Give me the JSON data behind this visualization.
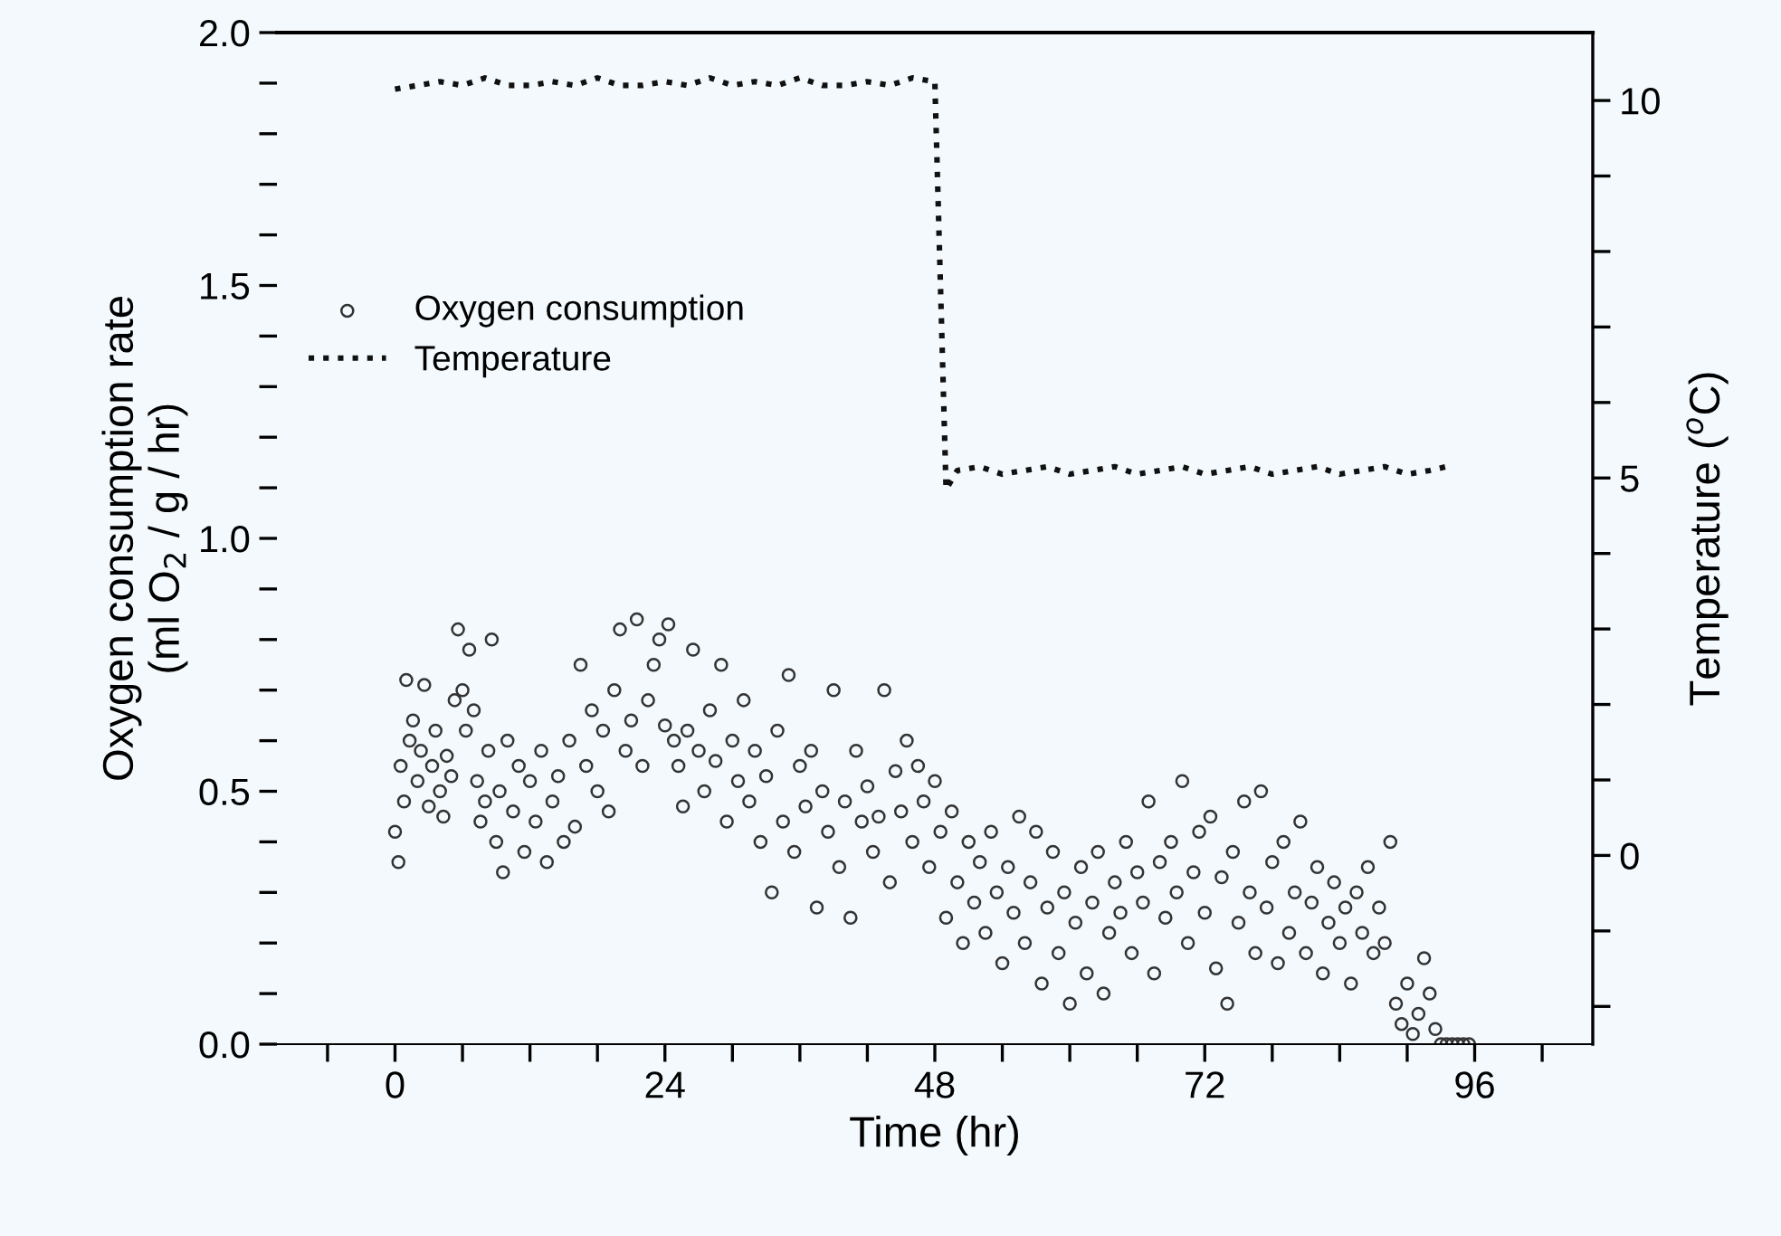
{
  "chart_data": {
    "type": "scatter",
    "xlabel": "Time (hr)",
    "ylabel": "Oxygen consumption rate\n(ml O$_{2}$ / g / hr)",
    "y2label": "Temperature ($^{o}$C)",
    "xlim": [
      -10.5,
      106.5
    ],
    "xticks": [
      {
        "value": -6,
        "label": null
      },
      0,
      {
        "value": 6,
        "label": null
      },
      {
        "value": 12,
        "label": null
      },
      {
        "value": 18,
        "label": null
      },
      24,
      {
        "value": 30,
        "label": null
      },
      {
        "value": 36,
        "label": null
      },
      {
        "value": 42,
        "label": null
      },
      48,
      {
        "value": 54,
        "label": null
      },
      {
        "value": 60,
        "label": null
      },
      {
        "value": 66,
        "label": null
      },
      72,
      {
        "value": 78,
        "label": null
      },
      {
        "value": 84,
        "label": null
      },
      {
        "value": 90,
        "label": null
      },
      96,
      {
        "value": 102,
        "label": null
      }
    ],
    "ylim": [
      0,
      2.0
    ],
    "yticks": [
      {
        "value": 0,
        "label": "0.0"
      },
      {
        "value": 0.1,
        "label": null
      },
      {
        "value": 0.2,
        "label": null
      },
      {
        "value": 0.3,
        "label": null
      },
      {
        "value": 0.4,
        "label": null
      },
      0.5,
      {
        "value": 0.6,
        "label": null
      },
      {
        "value": 0.7,
        "label": null
      },
      {
        "value": 0.8,
        "label": null
      },
      {
        "value": 0.9,
        "label": null
      },
      {
        "value": 1.0,
        "label": "1.0"
      },
      {
        "value": 1.1,
        "label": null
      },
      {
        "value": 1.2,
        "label": null
      },
      {
        "value": 1.3,
        "label": null
      },
      {
        "value": 1.4,
        "label": null
      },
      1.5,
      {
        "value": 1.6,
        "label": null
      },
      {
        "value": 1.7,
        "label": null
      },
      {
        "value": 1.8,
        "label": null
      },
      {
        "value": 1.9,
        "label": null
      },
      {
        "value": 2.0,
        "label": "2.0"
      }
    ],
    "y2lim": [
      -2.5,
      10.9
    ],
    "y2ticks": [
      {
        "value": -2,
        "label": null
      },
      {
        "value": -1,
        "label": null
      },
      0,
      {
        "value": 1,
        "label": null
      },
      {
        "value": 2,
        "label": null
      },
      {
        "value": 3,
        "label": null
      },
      {
        "value": 4,
        "label": null
      },
      5,
      {
        "value": 6,
        "label": null
      },
      {
        "value": 7,
        "label": null
      },
      {
        "value": 8,
        "label": null
      },
      {
        "value": 9,
        "label": null
      },
      10
    ],
    "grid": false,
    "legend": "left",
    "series": [
      {
        "name": "Oxygen consumption",
        "marker": "circle",
        "color": "#333333",
        "x": [
          0,
          0.3,
          0.5,
          0.8,
          1,
          1.3,
          1.6,
          2,
          2.3,
          2.6,
          3,
          3.3,
          3.6,
          4,
          4.3,
          4.6,
          5,
          5.3,
          5.6,
          6,
          6.3,
          6.6,
          7,
          7.3,
          7.6,
          8,
          8.3,
          8.6,
          9,
          9.3,
          9.6,
          10,
          10.5,
          11,
          11.5,
          12,
          12.5,
          13,
          13.5,
          14,
          14.5,
          15,
          15.5,
          16,
          16.5,
          17,
          17.5,
          18,
          18.5,
          19,
          19.5,
          20,
          20.5,
          21,
          21.5,
          22,
          22.5,
          23,
          23.5,
          24,
          24.3,
          24.8,
          25.2,
          25.6,
          26,
          26.5,
          27,
          27.5,
          28,
          28.5,
          29,
          29.5,
          30,
          30.5,
          31,
          31.5,
          32,
          32.5,
          33,
          33.5,
          34,
          34.5,
          35,
          35.5,
          36,
          36.5,
          37,
          37.5,
          38,
          38.5,
          39,
          39.5,
          40,
          40.5,
          41,
          41.5,
          42,
          42.5,
          43,
          43.5,
          44,
          44.5,
          45,
          45.5,
          46,
          46.5,
          47,
          47.5,
          48,
          48.5,
          49,
          49.5,
          50,
          50.5,
          51,
          51.5,
          52,
          52.5,
          53,
          53.5,
          54,
          54.5,
          55,
          55.5,
          56,
          56.5,
          57,
          57.5,
          58,
          58.5,
          59,
          59.5,
          60,
          60.5,
          61,
          61.5,
          62,
          62.5,
          63,
          63.5,
          64,
          64.5,
          65,
          65.5,
          66,
          66.5,
          67,
          67.5,
          68,
          68.5,
          69,
          69.5,
          70,
          70.5,
          71,
          71.5,
          72,
          72.5,
          73,
          73.5,
          74,
          74.5,
          75,
          75.5,
          76,
          76.5,
          77,
          77.5,
          78,
          78.5,
          79,
          79.5,
          80,
          80.5,
          81,
          81.5,
          82,
          82.5,
          83,
          83.5,
          84,
          84.5,
          85,
          85.5,
          86,
          86.5,
          87,
          87.5,
          88,
          88.5,
          89,
          89.5,
          90,
          90.5,
          91,
          91.5,
          92,
          92.5,
          93,
          93.5,
          94,
          94.5,
          95,
          95.5
        ],
        "values": [
          0.42,
          0.36,
          0.55,
          0.48,
          0.72,
          0.6,
          0.64,
          0.52,
          0.58,
          0.71,
          0.47,
          0.55,
          0.62,
          0.5,
          0.45,
          0.57,
          0.53,
          0.68,
          0.82,
          0.7,
          0.62,
          0.78,
          0.66,
          0.52,
          0.44,
          0.48,
          0.58,
          0.8,
          0.4,
          0.5,
          0.34,
          0.6,
          0.46,
          0.55,
          0.38,
          0.52,
          0.44,
          0.58,
          0.36,
          0.48,
          0.53,
          0.4,
          0.6,
          0.43,
          0.75,
          0.55,
          0.66,
          0.5,
          0.62,
          0.46,
          0.7,
          0.82,
          0.58,
          0.64,
          0.84,
          0.55,
          0.68,
          0.75,
          0.8,
          0.63,
          0.83,
          0.6,
          0.55,
          0.47,
          0.62,
          0.78,
          0.58,
          0.5,
          0.66,
          0.56,
          0.75,
          0.44,
          0.6,
          0.52,
          0.68,
          0.48,
          0.58,
          0.4,
          0.53,
          0.3,
          0.62,
          0.44,
          0.73,
          0.38,
          0.55,
          0.47,
          0.58,
          0.27,
          0.5,
          0.42,
          0.7,
          0.35,
          0.48,
          0.25,
          0.58,
          0.44,
          0.51,
          0.38,
          0.45,
          0.7,
          0.32,
          0.54,
          0.46,
          0.6,
          0.4,
          0.55,
          0.48,
          0.35,
          0.52,
          0.42,
          0.25,
          0.46,
          0.32,
          0.2,
          0.4,
          0.28,
          0.36,
          0.22,
          0.42,
          0.3,
          0.16,
          0.35,
          0.26,
          0.45,
          0.2,
          0.32,
          0.42,
          0.12,
          0.27,
          0.38,
          0.18,
          0.3,
          0.08,
          0.24,
          0.35,
          0.14,
          0.28,
          0.38,
          0.1,
          0.22,
          0.32,
          0.26,
          0.4,
          0.18,
          0.34,
          0.28,
          0.48,
          0.14,
          0.36,
          0.25,
          0.4,
          0.3,
          0.52,
          0.2,
          0.34,
          0.42,
          0.26,
          0.45,
          0.15,
          0.33,
          0.08,
          0.38,
          0.24,
          0.48,
          0.3,
          0.18,
          0.5,
          0.27,
          0.36,
          0.16,
          0.4,
          0.22,
          0.3,
          0.44,
          0.18,
          0.28,
          0.35,
          0.14,
          0.24,
          0.32,
          0.2,
          0.27,
          0.12,
          0.3,
          0.22,
          0.35,
          0.18,
          0.27,
          0.2,
          0.4,
          0.08,
          0.04,
          0.12,
          0.02,
          0.06,
          0.17,
          0.1,
          0.03,
          0,
          0,
          0,
          0,
          0,
          0
        ]
      },
      {
        "name": "Temperature",
        "type": "line",
        "axis": "y2",
        "line_style": "dotted",
        "marker": "none",
        "color": "#111111",
        "x": [
          0,
          2,
          4,
          6,
          8,
          10,
          12,
          14,
          16,
          18,
          20,
          22,
          24,
          26,
          28,
          30,
          32,
          34,
          36,
          38,
          40,
          42,
          44,
          46,
          48,
          49,
          50,
          52,
          54,
          56,
          58,
          60,
          62,
          64,
          66,
          68,
          70,
          72,
          74,
          76,
          78,
          80,
          82,
          84,
          86,
          88,
          90,
          92,
          93.5
        ],
        "values": [
          10.15,
          10.2,
          10.25,
          10.2,
          10.3,
          10.2,
          10.2,
          10.25,
          10.2,
          10.3,
          10.2,
          10.2,
          10.25,
          10.2,
          10.3,
          10.2,
          10.25,
          10.2,
          10.3,
          10.2,
          10.2,
          10.25,
          10.2,
          10.3,
          10.25,
          4.85,
          5.1,
          5.15,
          5.05,
          5.1,
          5.15,
          5.05,
          5.1,
          5.15,
          5.05,
          5.1,
          5.15,
          5.05,
          5.1,
          5.15,
          5.05,
          5.1,
          5.15,
          5.05,
          5.1,
          5.15,
          5.05,
          5.1,
          5.15
        ]
      }
    ]
  }
}
